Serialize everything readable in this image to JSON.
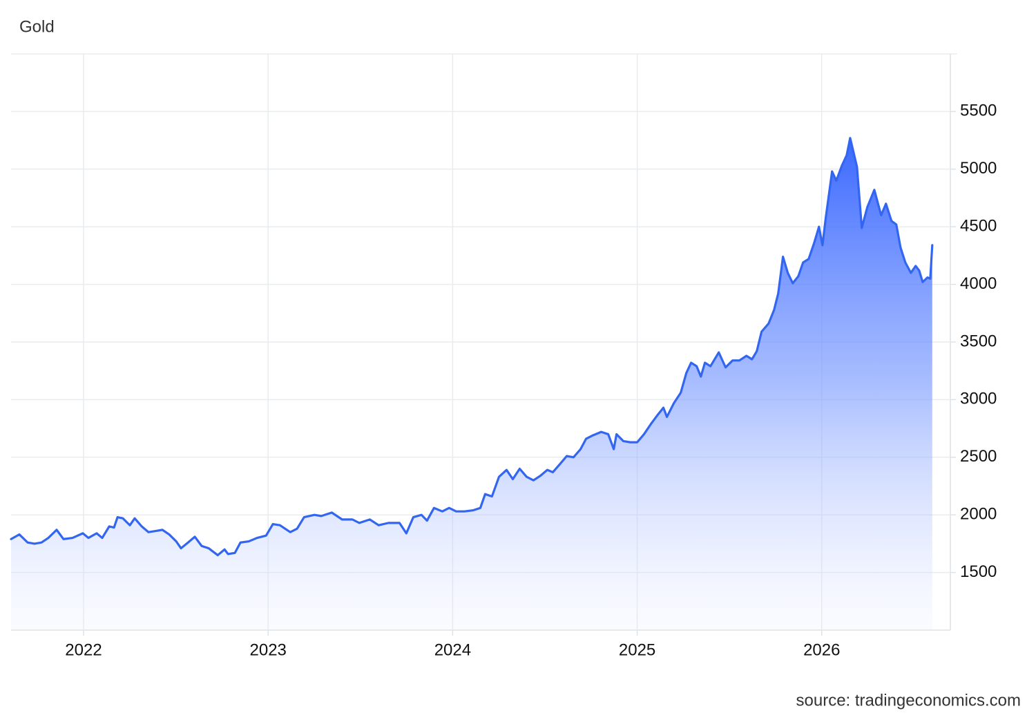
{
  "chart_data": {
    "type": "area",
    "title": "Gold",
    "source": "source: tradingeconomics.com",
    "color": "#3366f0",
    "grid": true,
    "xlim": [
      2021.607,
      2026.697
    ],
    "xticks": [
      2022,
      2023,
      2024,
      2025,
      2026
    ],
    "ylim": [
      1000,
      6000
    ],
    "yticks": [
      1500,
      2000,
      2500,
      3000,
      3500,
      4000,
      4500,
      5000,
      5500
    ],
    "x": [
      2021.607,
      2021.652,
      2021.697,
      2021.734,
      2021.772,
      2021.809,
      2021.854,
      2021.891,
      2021.94,
      2021.996,
      2022.026,
      2022.071,
      2022.101,
      2022.139,
      2022.165,
      2022.184,
      2022.213,
      2022.251,
      2022.277,
      2022.315,
      2022.352,
      2022.39,
      2022.427,
      2022.464,
      2022.502,
      2022.528,
      2022.566,
      2022.603,
      2022.64,
      2022.678,
      2022.727,
      2022.764,
      2022.783,
      2022.82,
      2022.85,
      2022.895,
      2022.94,
      2022.989,
      2023.026,
      2023.064,
      2023.12,
      2023.157,
      2023.195,
      2023.251,
      2023.288,
      2023.345,
      2023.401,
      2023.457,
      2023.494,
      2023.551,
      2023.599,
      2023.652,
      2023.712,
      2023.749,
      2023.787,
      2023.831,
      2023.861,
      2023.899,
      2023.944,
      2023.981,
      2024.019,
      2024.064,
      2024.112,
      2024.15,
      2024.176,
      2024.213,
      2024.251,
      2024.292,
      2024.326,
      2024.363,
      2024.401,
      2024.438,
      2024.476,
      2024.513,
      2024.543,
      2024.581,
      2024.618,
      2024.655,
      2024.693,
      2024.723,
      2024.76,
      2024.805,
      2024.843,
      2024.873,
      2024.888,
      2024.925,
      2024.963,
      2025.0,
      2025.037,
      2025.075,
      2025.112,
      2025.142,
      2025.161,
      2025.199,
      2025.236,
      2025.266,
      2025.292,
      2025.322,
      2025.345,
      2025.367,
      2025.397,
      2025.442,
      2025.479,
      2025.517,
      2025.554,
      2025.592,
      2025.622,
      2025.648,
      2025.674,
      2025.712,
      2025.742,
      2025.764,
      2025.79,
      2025.816,
      2025.843,
      2025.873,
      2025.899,
      2025.929,
      2025.959,
      2025.985,
      2026.004,
      2026.022,
      2026.056,
      2026.079,
      2026.109,
      2026.135,
      2026.154,
      2026.191,
      2026.217,
      2026.247,
      2026.285,
      2026.322,
      2026.348,
      2026.378,
      2026.404,
      2026.427,
      2026.453,
      2026.483,
      2026.509,
      2026.528,
      2026.547,
      2026.573,
      2026.588,
      2026.599
    ],
    "values": [
      1790,
      1830,
      1760,
      1750,
      1760,
      1800,
      1870,
      1790,
      1800,
      1840,
      1800,
      1840,
      1800,
      1900,
      1890,
      1980,
      1970,
      1910,
      1970,
      1900,
      1850,
      1860,
      1870,
      1830,
      1770,
      1710,
      1760,
      1810,
      1730,
      1710,
      1650,
      1700,
      1660,
      1670,
      1760,
      1770,
      1800,
      1820,
      1920,
      1910,
      1850,
      1880,
      1980,
      2000,
      1990,
      2020,
      1960,
      1960,
      1930,
      1960,
      1910,
      1930,
      1930,
      1840,
      1980,
      2000,
      1950,
      2060,
      2030,
      2060,
      2030,
      2030,
      2040,
      2060,
      2180,
      2160,
      2330,
      2390,
      2310,
      2400,
      2330,
      2300,
      2340,
      2390,
      2370,
      2440,
      2510,
      2500,
      2570,
      2660,
      2690,
      2720,
      2700,
      2570,
      2700,
      2640,
      2630,
      2630,
      2700,
      2790,
      2870,
      2930,
      2850,
      2970,
      3060,
      3230,
      3320,
      3290,
      3200,
      3320,
      3290,
      3410,
      3280,
      3340,
      3340,
      3380,
      3350,
      3420,
      3590,
      3660,
      3780,
      3920,
      4240,
      4100,
      4010,
      4070,
      4190,
      4220,
      4360,
      4500,
      4340,
      4580,
      4980,
      4900,
      5030,
      5120,
      5270,
      5020,
      4490,
      4670,
      4820,
      4600,
      4700,
      4550,
      4520,
      4320,
      4190,
      4100,
      4160,
      4120,
      4020,
      4060,
      4050,
      4340
    ]
  }
}
